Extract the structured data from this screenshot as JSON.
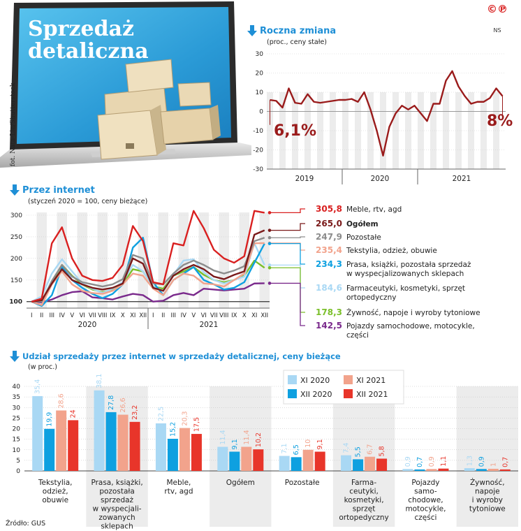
{
  "hero": {
    "title_line1": "Sprzedaż",
    "title_line2": "detaliczna",
    "photo_credit": "fot. Nata-Lia/Shutterstock"
  },
  "logo": {
    "symbol": "©℗",
    "initials": "NS"
  },
  "colors": {
    "accent_blue": "#1e8fd6",
    "dark_red": "#9a1b1b",
    "red": "#d92020",
    "salmon": "#f2a38c",
    "light_blue": "#a9d8f4",
    "blue": "#0ea0e0",
    "grey": "#8c8c8c",
    "green": "#7bbf2a",
    "purple": "#7a2a8c",
    "orange": "#f07a3a"
  },
  "source": "Źródło: GUS",
  "chart_data": [
    {
      "type": "line",
      "id": "roczna",
      "title": "Roczna zmiana",
      "subtitle": "(proc., ceny stałe)",
      "ylim": [
        -30,
        30
      ],
      "yticks": [
        -30,
        -20,
        -10,
        0,
        10,
        20,
        30
      ],
      "year_labels": [
        "2019",
        "2020",
        "2021"
      ],
      "values": [
        6,
        5.5,
        2,
        12,
        4.5,
        4,
        9,
        5,
        4.5,
        5,
        5.5,
        6,
        6,
        6.5,
        5,
        10,
        1,
        -10,
        -23,
        -8,
        -1,
        3,
        1,
        3,
        -1,
        -5,
        4,
        4,
        16,
        21,
        13,
        8,
        4,
        5,
        5,
        7,
        12,
        8
      ],
      "annotations": [
        {
          "text": "6,1%"
        },
        {
          "text": "8%"
        }
      ]
    },
    {
      "type": "line",
      "id": "internet",
      "title": "Przez internet",
      "subtitle": "(styczeń 2020 = 100, ceny bieżące)",
      "ylim": [
        100,
        300
      ],
      "yticks": [
        100,
        150,
        200,
        250,
        300
      ],
      "categories": [
        "I",
        "II",
        "III",
        "IV",
        "V",
        "VI",
        "VII",
        "VIII",
        "IX",
        "X",
        "XI",
        "XII",
        "I",
        "II",
        "III",
        "IV",
        "V",
        "VI",
        "VII",
        "VIII",
        "IX",
        "X",
        "XI",
        "XII"
      ],
      "year_labels": [
        "2020",
        "2021"
      ],
      "series": [
        {
          "name": "Meble, rtv, agd",
          "label": "305,8",
          "color": "#d92020",
          "values": [
            100,
            107,
            235,
            272,
            200,
            160,
            150,
            148,
            155,
            185,
            275,
            240,
            145,
            140,
            235,
            230,
            310,
            270,
            220,
            200,
            190,
            205,
            310,
            305.8
          ]
        },
        {
          "name": "Ogółem",
          "label": "265,0",
          "color": "#7a1a1a",
          "values": [
            100,
            103,
            142,
            175,
            150,
            140,
            132,
            128,
            132,
            142,
            200,
            188,
            132,
            125,
            160,
            175,
            185,
            175,
            158,
            152,
            162,
            170,
            255,
            265.0
          ]
        },
        {
          "name": "Pozostałe",
          "label": "247,9",
          "color": "#8c8c8c",
          "values": [
            100,
            100,
            148,
            185,
            158,
            145,
            140,
            135,
            140,
            152,
            208,
            200,
            142,
            140,
            165,
            185,
            195,
            185,
            172,
            165,
            172,
            182,
            240,
            247.9
          ]
        },
        {
          "name": "Tekstylia, odzież, obuwie",
          "label": "235,4",
          "color": "#f2a38c",
          "values": [
            100,
            92,
            140,
            170,
            140,
            125,
            120,
            118,
            125,
            140,
            165,
            160,
            130,
            115,
            150,
            165,
            160,
            142,
            140,
            135,
            150,
            165,
            235,
            235.4
          ]
        },
        {
          "name": "Prasa, książki, pozostała sprzedaż w wyspecjalizowanych sklepach",
          "label": "234,3",
          "color": "#0ea0e0",
          "values": [
            100,
            90,
            115,
            180,
            150,
            132,
            118,
            108,
            118,
            140,
            225,
            248,
            145,
            115,
            150,
            165,
            180,
            150,
            140,
            128,
            132,
            145,
            190,
            234.3
          ]
        },
        {
          "name": "Farmaceutyki, kosmetyki, sprzęt ortopedyczny",
          "label": "184,6",
          "color": "#a9d8f4",
          "values": [
            100,
            112,
            165,
            198,
            170,
            142,
            130,
            120,
            130,
            145,
            185,
            170,
            135,
            125,
            162,
            195,
            198,
            168,
            150,
            142,
            150,
            158,
            235,
            184.6
          ]
        },
        {
          "name": "Żywność, napoje i wyroby tytoniowe",
          "label": "178,3",
          "color": "#7bbf2a",
          "values": [
            100,
            102,
            145,
            185,
            160,
            140,
            128,
            122,
            128,
            140,
            175,
            170,
            135,
            130,
            160,
            170,
            180,
            162,
            150,
            145,
            150,
            160,
            195,
            178.3
          ]
        },
        {
          "name": "Pojazdy samochodowe, motocykle, części",
          "label": "142,5",
          "color": "#7a2a8c",
          "values": [
            100,
            98,
            105,
            115,
            122,
            124,
            110,
            108,
            105,
            112,
            118,
            115,
            100,
            102,
            115,
            120,
            115,
            130,
            128,
            126,
            128,
            130,
            142,
            142.5
          ]
        }
      ]
    },
    {
      "type": "bar",
      "id": "udzial",
      "title": "Udział sprzedaży przez internet w sprzedaży detalicznej, ceny bieżące",
      "subtitle": "(w proc.)",
      "ylim": [
        0,
        40
      ],
      "yticks": [
        0,
        5,
        10,
        15,
        20,
        25,
        30,
        35,
        40
      ],
      "categories": [
        "Tekstylia, odzież, obuwie",
        "Prasa, książki, pozostała sprzedaż w wyspecjalizowanych sklepach",
        "Meble, rtv, agd",
        "Ogółem",
        "Pozostałe",
        "Farmaceutyki, kosmetyki, sprzęt ortopedyczny",
        "Pojazdy samochodowe, motocykle, części",
        "Żywność, napoje i wyroby tytoniowe"
      ],
      "category_lines": [
        [
          "Tekstylia,",
          "odzież,",
          "obuwie"
        ],
        [
          "Prasa, książki,",
          "pozostała",
          "sprzedaż",
          "w wyspecjali-",
          "zowanych",
          "sklepach"
        ],
        [
          "Meble,",
          "rtv, agd"
        ],
        [
          "Ogółem"
        ],
        [
          "Pozostałe"
        ],
        [
          "Farma-",
          "ceutyki,",
          "kosmetyki,",
          "sprzęt",
          "ortopedyczny"
        ],
        [
          "Pojazdy",
          "samo-",
          "chodowe,",
          "motocykle,",
          "części"
        ],
        [
          "Żywność,",
          "napoje",
          "i wyroby",
          "tytoniowe"
        ]
      ],
      "series": [
        {
          "name": "XI 2020",
          "color": "#a9d8f4",
          "values": [
            35.4,
            38.1,
            22.5,
            11.4,
            7.1,
            7.4,
            0.9,
            1.3
          ],
          "labels": [
            "35,4",
            "38,1",
            "22,5",
            "11,4",
            "7,1",
            "7,4",
            "0,9",
            "1,3"
          ]
        },
        {
          "name": "XII 2020",
          "color": "#0ea0e0",
          "values": [
            19.9,
            27.8,
            15.2,
            9.1,
            6.5,
            5.5,
            0.7,
            0.9
          ],
          "labels": [
            "19,9",
            "27,8",
            "15,2",
            "9,1",
            "6,5",
            "5,5",
            "0,7",
            "0,9"
          ]
        },
        {
          "name": "XI 2021",
          "color": "#f2a38c",
          "values": [
            28.6,
            26.6,
            20.3,
            11.4,
            10,
            6.7,
            0.9,
            1
          ],
          "labels": [
            "28,6",
            "26,6",
            "20,3",
            "11,4",
            "10",
            "6,7",
            "0,9",
            "1"
          ]
        },
        {
          "name": "XII 2021",
          "color": "#e8352a",
          "values": [
            24,
            23.2,
            17.5,
            10.2,
            9.1,
            5.8,
            1.1,
            0.7
          ],
          "labels": [
            "24",
            "23,2",
            "17,5",
            "10,2",
            "9,1",
            "5,8",
            "1,1",
            "0,7"
          ]
        }
      ],
      "legend_placement": "top-right"
    }
  ]
}
